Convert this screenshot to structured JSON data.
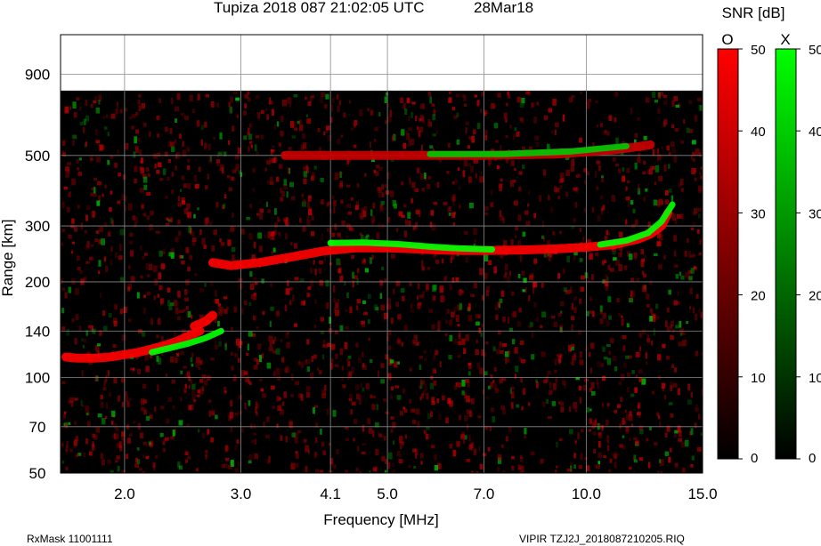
{
  "header": {
    "title": "Tupiza 2018 087 21:02:05 UTC",
    "date": "28Mar18"
  },
  "footer": {
    "rxmask": "RxMask 11001111",
    "filename": "VIPIR  TZJ2J_2018087210205.RIQ"
  },
  "colorbars": {
    "title": "SNR [dB]",
    "o_label": "O",
    "x_label": "X",
    "o_color": "#ff0000",
    "x_color": "#00ff00",
    "range": [
      0,
      50
    ],
    "ticks": [
      "0",
      "10",
      "20",
      "30",
      "40",
      "50"
    ]
  },
  "chart_data": {
    "type": "heatmap",
    "title": "Tupiza 2018 087 21:02:05 UTC",
    "xlabel": "Frequency [MHz]",
    "ylabel": "Range [km]",
    "x_scale": "log",
    "y_scale": "log",
    "xlim": [
      1.6,
      15.0
    ],
    "ylim": [
      50,
      1200
    ],
    "grid": true,
    "x_ticks": [
      "2.0",
      "3.0",
      "4.1",
      "5.0",
      "7.0",
      "10.0",
      "15.0"
    ],
    "y_ticks": [
      "50",
      "70",
      "100",
      "140",
      "200",
      "300",
      "500",
      "900"
    ],
    "data_top_range_km": 800,
    "background_color": "#000000",
    "series": [
      {
        "name": "O",
        "color": "#ff0000",
        "points": [
          [
            1.63,
            116
          ],
          [
            1.7,
            115
          ],
          [
            1.8,
            115
          ],
          [
            1.9,
            116
          ],
          [
            2.0,
            118
          ],
          [
            2.1,
            120
          ],
          [
            2.2,
            123
          ],
          [
            2.3,
            126
          ],
          [
            2.4,
            130
          ],
          [
            2.5,
            135
          ],
          [
            2.6,
            140
          ]
        ]
      },
      {
        "name": "O",
        "color": "#ff0000",
        "points": [
          [
            2.55,
            145
          ],
          [
            2.65,
            150
          ],
          [
            2.72,
            157
          ]
        ]
      },
      {
        "name": "O",
        "color": "#ff0000",
        "points": [
          [
            2.72,
            230
          ],
          [
            2.9,
            225
          ],
          [
            3.2,
            230
          ],
          [
            3.6,
            240
          ],
          [
            4.0,
            250
          ],
          [
            4.5,
            256
          ],
          [
            5.0,
            256
          ],
          [
            5.5,
            254
          ],
          [
            6.0,
            252
          ],
          [
            6.5,
            251
          ],
          [
            7.0,
            251
          ],
          [
            8.0,
            252
          ],
          [
            9.0,
            254
          ],
          [
            10.0,
            257
          ],
          [
            11.0,
            262
          ],
          [
            12.0,
            273
          ],
          [
            12.5,
            283
          ],
          [
            13.0,
            300
          ],
          [
            13.3,
            330
          ]
        ]
      },
      {
        "name": "O",
        "color": "#c80000",
        "points": [
          [
            3.5,
            500
          ],
          [
            5.0,
            500
          ],
          [
            7.0,
            500
          ],
          [
            9.0,
            505
          ],
          [
            11.0,
            520
          ],
          [
            12.5,
            540
          ]
        ]
      },
      {
        "name": "X",
        "color": "#00ff00",
        "points": [
          [
            2.2,
            120
          ],
          [
            2.35,
            124
          ],
          [
            2.5,
            128
          ],
          [
            2.65,
            133
          ],
          [
            2.8,
            140
          ]
        ]
      },
      {
        "name": "X",
        "color": "#00ff00",
        "points": [
          [
            4.1,
            265
          ],
          [
            4.6,
            266
          ],
          [
            5.2,
            263
          ],
          [
            5.8,
            258
          ],
          [
            6.4,
            255
          ],
          [
            7.2,
            253
          ]
        ]
      },
      {
        "name": "X",
        "color": "#00ff00",
        "points": [
          [
            10.5,
            262
          ],
          [
            11.5,
            270
          ],
          [
            12.4,
            285
          ],
          [
            13.0,
            310
          ],
          [
            13.5,
            350
          ]
        ]
      },
      {
        "name": "X",
        "color": "#00c800",
        "points": [
          [
            5.8,
            505
          ],
          [
            7.5,
            505
          ],
          [
            9.5,
            515
          ],
          [
            11.5,
            535
          ]
        ]
      }
    ]
  }
}
